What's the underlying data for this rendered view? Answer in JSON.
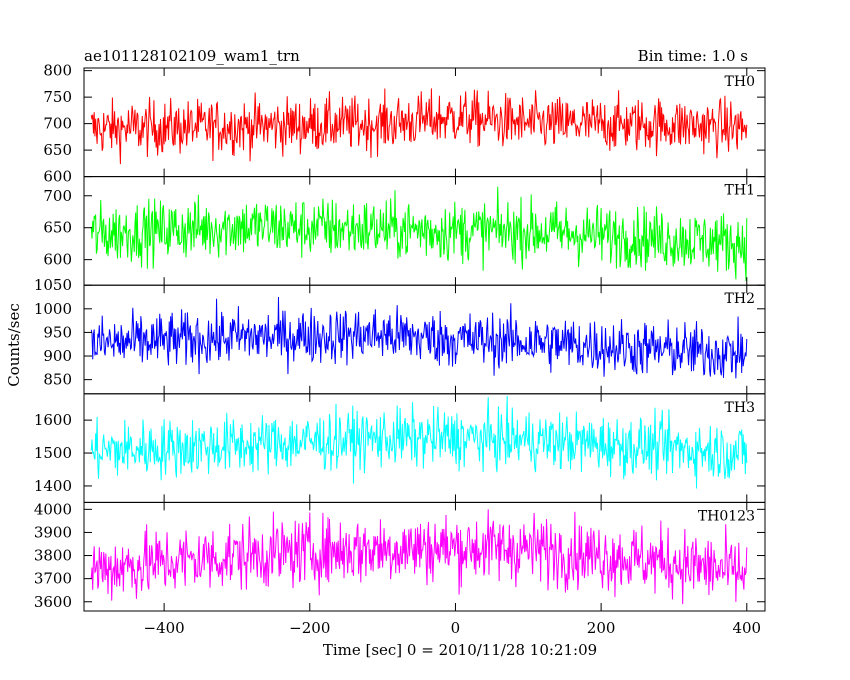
{
  "header": {
    "title": "ae101128102109_wam1_trn",
    "bin_time": "Bin time: 1.0 s"
  },
  "chart_data": {
    "type": "line",
    "title": "ae101128102109_wam1_trn",
    "subtitle": "Bin time: 1.0 s",
    "xlabel": "Time [sec] 0 = 2010/11/28 10:21:09",
    "ylabel": "Counts/sec",
    "xlim": [
      -510,
      425
    ],
    "x_ticks": [
      -400,
      -200,
      0,
      200,
      400
    ],
    "x_range": [
      -500,
      400
    ],
    "grid": false,
    "panels": [
      {
        "name": "TH0",
        "color": "#ff0000",
        "ylim": [
          600,
          805
        ],
        "y_ticks": [
          600,
          650,
          700,
          750,
          800
        ],
        "mean_profile": [
          [
            -500,
            690
          ],
          [
            -300,
            695
          ],
          [
            -100,
            700
          ],
          [
            0,
            712
          ],
          [
            100,
            700
          ],
          [
            300,
            698
          ],
          [
            400,
            692
          ]
        ],
        "noise_amplitude": 26
      },
      {
        "name": "TH1",
        "color": "#00ff00",
        "ylim": [
          560,
          730
        ],
        "y_ticks": [
          600,
          650,
          700
        ],
        "mean_profile": [
          [
            -500,
            640
          ],
          [
            -300,
            652
          ],
          [
            -100,
            648
          ],
          [
            0,
            645
          ],
          [
            100,
            645
          ],
          [
            300,
            632
          ],
          [
            400,
            625
          ]
        ],
        "noise_amplitude": 24
      },
      {
        "name": "TH2",
        "color": "#0000ff",
        "ylim": [
          820,
          1050
        ],
        "y_ticks": [
          850,
          900,
          950,
          1000,
          1050
        ],
        "mean_profile": [
          [
            -500,
            925
          ],
          [
            -300,
            940
          ],
          [
            -100,
            945
          ],
          [
            0,
            935
          ],
          [
            100,
            930
          ],
          [
            300,
            912
          ],
          [
            400,
            905
          ]
        ],
        "noise_amplitude": 30
      },
      {
        "name": "TH3",
        "color": "#00ffff",
        "ylim": [
          1350,
          1680
        ],
        "y_ticks": [
          1400,
          1500,
          1600
        ],
        "mean_profile": [
          [
            -500,
            1505
          ],
          [
            -300,
            1525
          ],
          [
            -100,
            1545
          ],
          [
            0,
            1545
          ],
          [
            100,
            1540
          ],
          [
            300,
            1515
          ],
          [
            400,
            1500
          ]
        ],
        "noise_amplitude": 45
      },
      {
        "name": "TH0123",
        "color": "#ff00ff",
        "ylim": [
          3560,
          4030
        ],
        "y_ticks": [
          3600,
          3700,
          3800,
          3900,
          4000
        ],
        "mean_profile": [
          [
            -500,
            3740
          ],
          [
            -300,
            3800
          ],
          [
            -100,
            3830
          ],
          [
            0,
            3835
          ],
          [
            100,
            3830
          ],
          [
            300,
            3770
          ],
          [
            400,
            3720
          ]
        ],
        "noise_amplitude": 75
      }
    ]
  }
}
